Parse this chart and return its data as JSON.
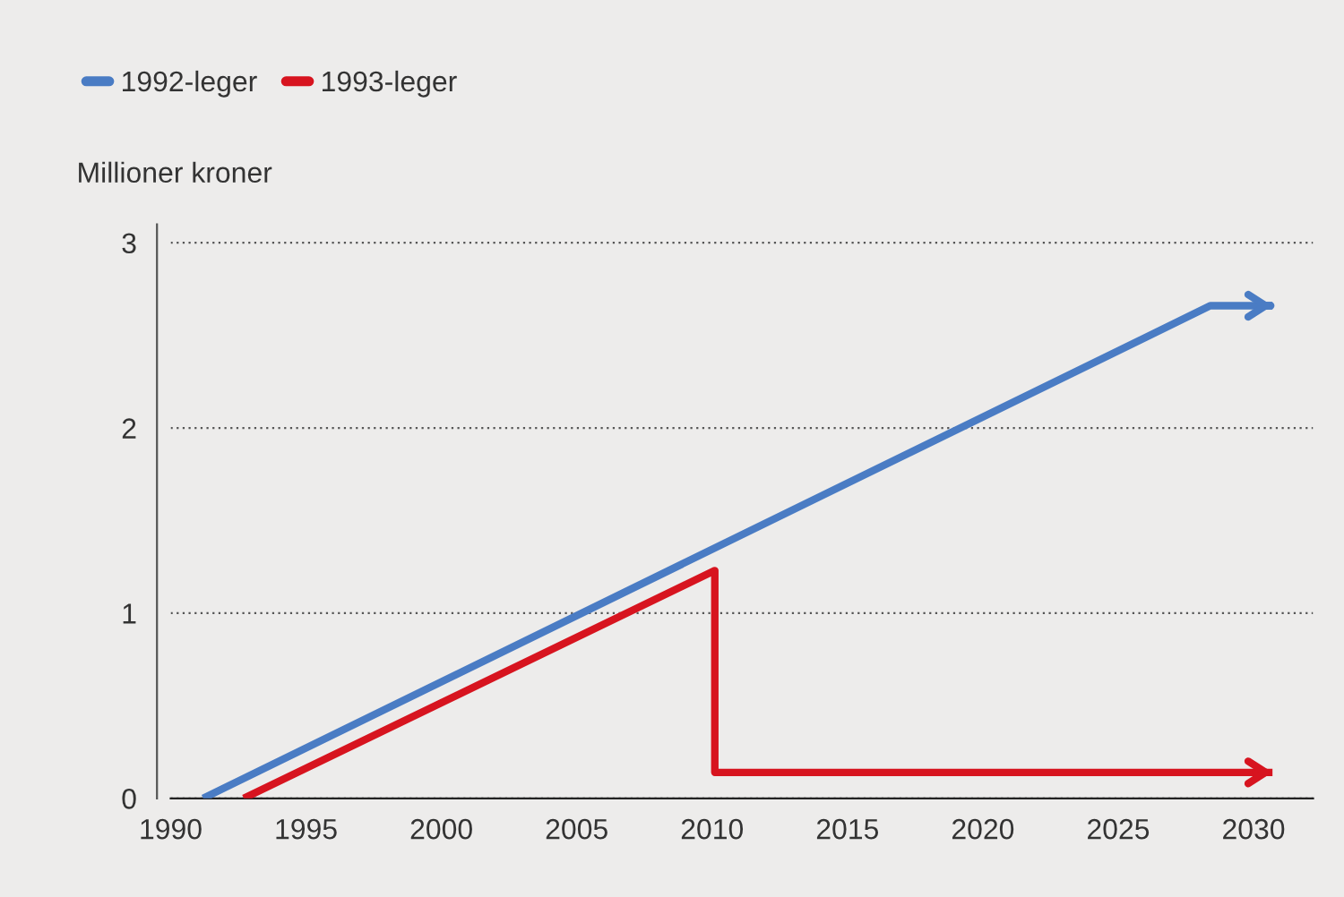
{
  "chart_data": {
    "type": "line",
    "ylabel": "Millioner kroner",
    "series": [
      {
        "name": "1992-leger",
        "color": "#4a7cc4",
        "x": [
          1991.2,
          2028.4,
          2030.7
        ],
        "values": [
          0,
          2.66,
          2.66
        ]
      },
      {
        "name": "1993-leger",
        "color": "#d7141f",
        "x": [
          1992.7,
          2010.1,
          2010.1,
          2030.7
        ],
        "values": [
          0,
          1.23,
          0.14,
          0.14
        ]
      }
    ],
    "xlim": [
      1990,
      2032.2
    ],
    "xticks": [
      1990,
      1995,
      2000,
      2005,
      2010,
      2015,
      2020,
      2025,
      2030
    ],
    "ylim": [
      0,
      3.1
    ],
    "yticks": [
      0,
      1,
      2,
      3
    ],
    "grid": "y",
    "legend": "top left",
    "line_style": "solid",
    "marker": "none"
  }
}
